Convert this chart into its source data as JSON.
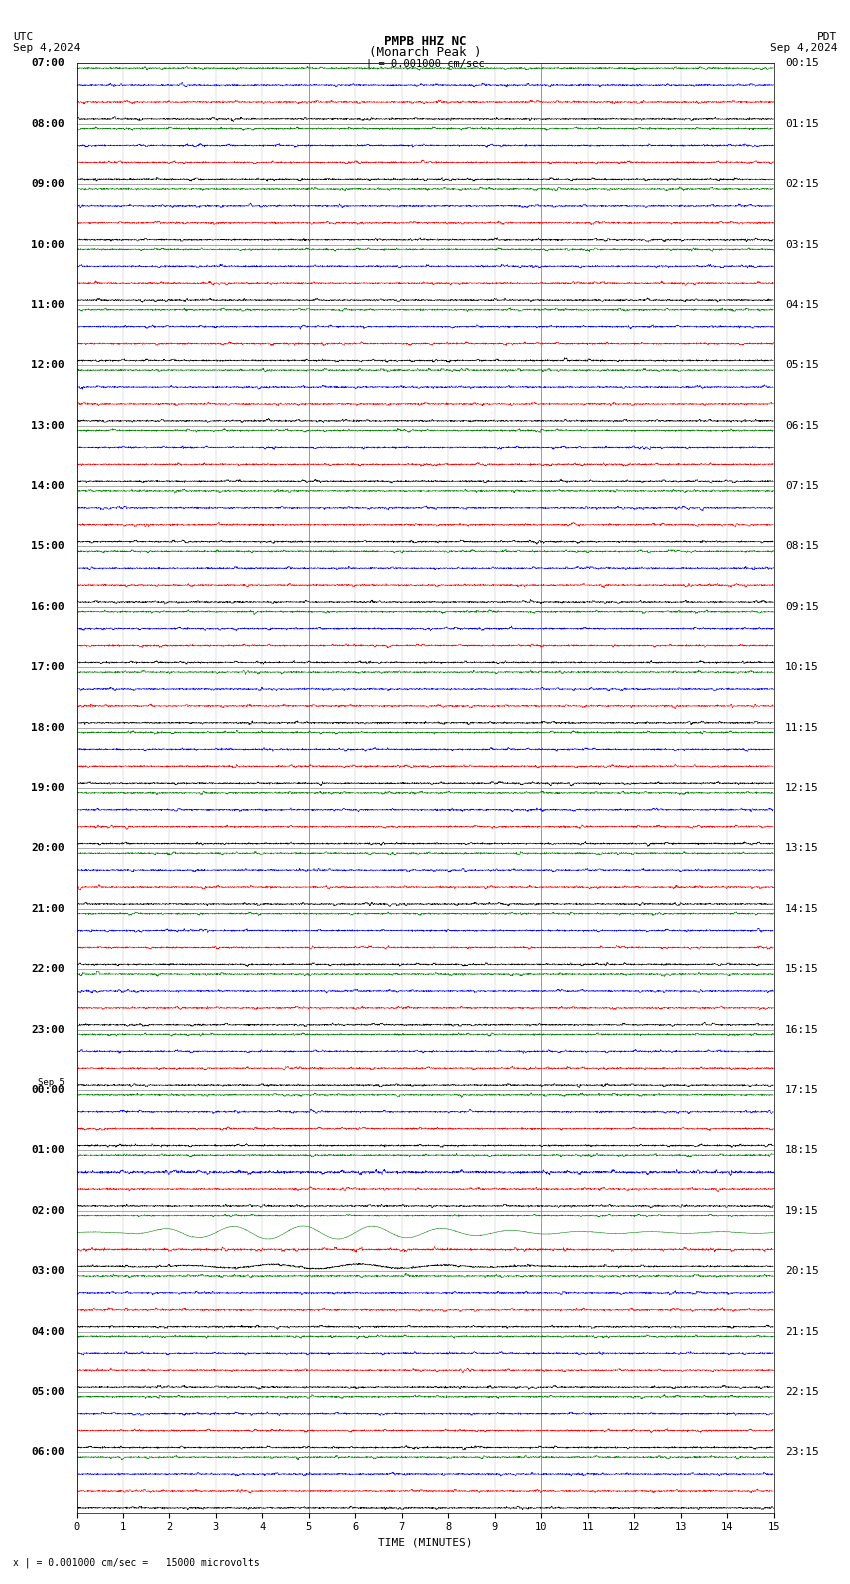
{
  "title_line1": "PMPB HHZ NC",
  "title_line2": "(Monarch Peak )",
  "scale_label": "| = 0.001000 cm/sec",
  "footer_label": "x | = 0.001000 cm/sec =   15000 microvolts",
  "utc_label": "UTC",
  "utc_date": "Sep 4,2024",
  "pdt_label": "PDT",
  "pdt_date": "Sep 4,2024",
  "xlabel": "TIME (MINUTES)",
  "left_times": [
    "07:00",
    "08:00",
    "09:00",
    "10:00",
    "11:00",
    "12:00",
    "13:00",
    "14:00",
    "15:00",
    "16:00",
    "17:00",
    "18:00",
    "19:00",
    "20:00",
    "21:00",
    "22:00",
    "23:00",
    "Sep 5|00:00",
    "01:00",
    "02:00",
    "03:00",
    "04:00",
    "05:00",
    "06:00"
  ],
  "right_times": [
    "00:15",
    "01:15",
    "02:15",
    "03:15",
    "04:15",
    "05:15",
    "06:15",
    "07:15",
    "08:15",
    "09:15",
    "10:15",
    "11:15",
    "12:15",
    "13:15",
    "14:15",
    "15:15",
    "16:15",
    "17:15",
    "18:15",
    "19:15",
    "20:15",
    "21:15",
    "22:15",
    "23:15"
  ],
  "n_rows": 24,
  "minutes_per_row": 15,
  "background_color": "#ffffff",
  "trace_color_black": "#000000",
  "trace_color_red": "#ff0000",
  "trace_color_blue": "#0000ff",
  "trace_color_green": "#008000",
  "grid_color_major": "#888888",
  "grid_color_minor": "#bbbbbb",
  "sub_colors": [
    "#000000",
    "#ff0000",
    "#0000ff",
    "#008000"
  ],
  "n_sub": 4,
  "noise_amp": 0.006,
  "spike_amp": 0.018,
  "green_osc_row": 19,
  "green_osc_sub": 2,
  "green_osc_amp": 0.09,
  "green_osc_freq": 10.0,
  "black_osc_row": 19,
  "black_osc_sub": 0,
  "black_osc_amp": 0.04,
  "black_osc_freq": 8.0
}
